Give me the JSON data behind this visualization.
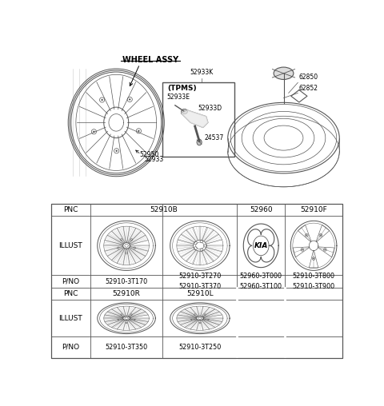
{
  "bg_color": "#ffffff",
  "line_color": "#555555",
  "text_color": "#000000",
  "table": {
    "cols": [
      0.01,
      0.135,
      0.355,
      0.555,
      0.735,
      0.99
    ],
    "rows": [
      0.455,
      0.418,
      0.248,
      0.205,
      0.163,
      0.057,
      0.012
    ],
    "pnc1": [
      "PNC",
      "52910B",
      "52960",
      "52910F"
    ],
    "pno1": [
      "P/NO",
      "52910-3T170",
      "52910-3T270\n52910-3T370",
      "52960-3T000\n52960-3T100",
      "52910-3T800\n52910-3T900"
    ],
    "pnc2": [
      "PNC",
      "52910R",
      "52910L"
    ],
    "pno2": [
      "P/NO",
      "52910-3T350",
      "52910-3T250"
    ]
  }
}
